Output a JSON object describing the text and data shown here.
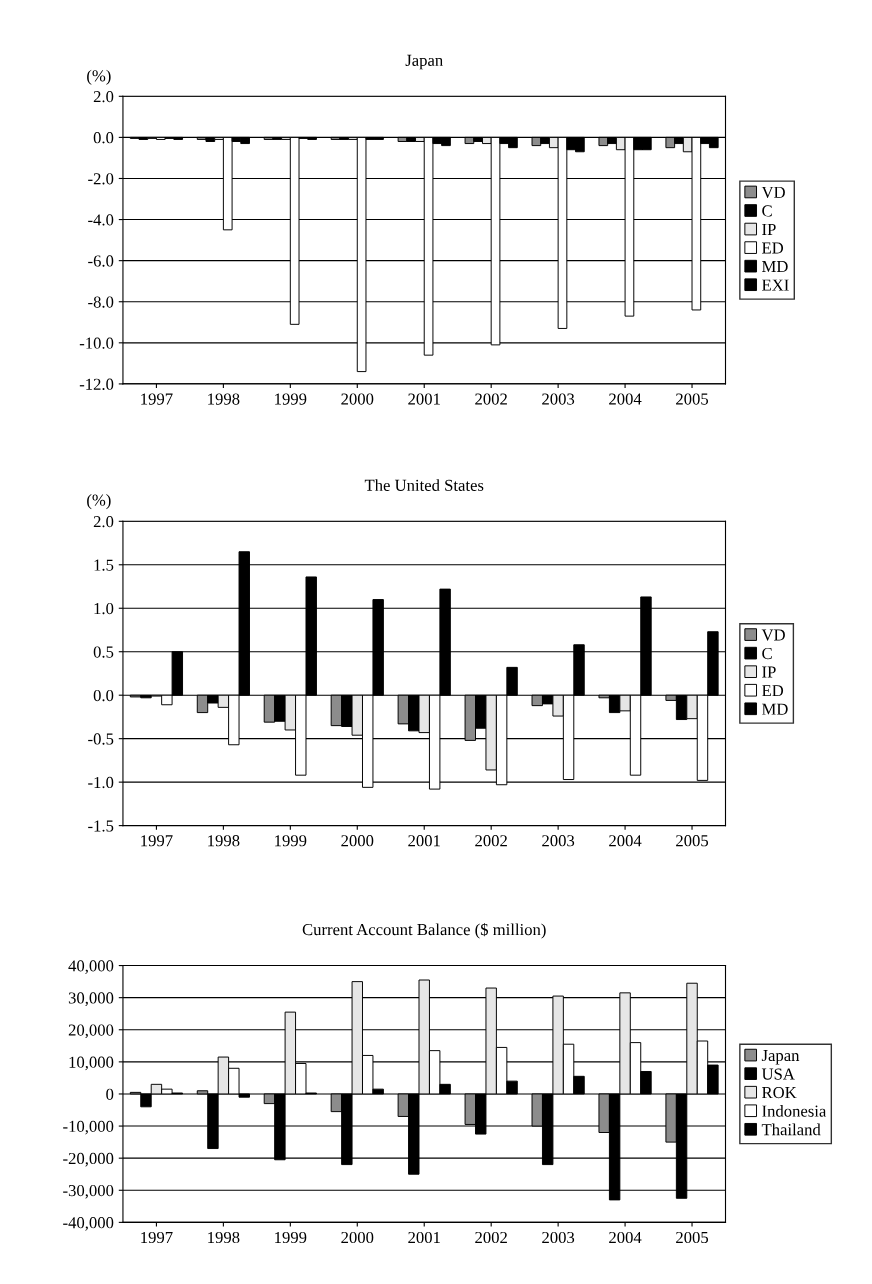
{
  "chart_data": [
    {
      "type": "bar",
      "title": "Japan",
      "ylabel": "(%)",
      "categories": [
        "1997",
        "1998",
        "1999",
        "2000",
        "2001",
        "2002",
        "2003",
        "2004",
        "2005"
      ],
      "series": [
        {
          "name": "VD",
          "color": "#8c8c8c",
          "values": [
            -0.05,
            -0.1,
            -0.1,
            -0.1,
            -0.2,
            -0.3,
            -0.4,
            -0.4,
            -0.5
          ]
        },
        {
          "name": "C",
          "color": "#000000",
          "values": [
            -0.1,
            -0.2,
            -0.1,
            -0.1,
            -0.2,
            -0.2,
            -0.3,
            -0.3,
            -0.3
          ]
        },
        {
          "name": "IP",
          "color": "#e6e6e6",
          "values": [
            -0.05,
            -0.1,
            -0.1,
            -0.1,
            -0.2,
            -0.3,
            -0.5,
            -0.6,
            -0.7
          ]
        },
        {
          "name": "ED",
          "color": "#ffffff",
          "values": [
            -0.1,
            -4.5,
            -9.1,
            -11.4,
            -10.6,
            -10.1,
            -9.3,
            -8.7,
            -8.4
          ]
        },
        {
          "name": "MD",
          "color": "#000000",
          "values": [
            -0.05,
            -0.2,
            -0.05,
            -0.1,
            -0.3,
            -0.3,
            -0.6,
            -0.6,
            -0.3
          ]
        },
        {
          "name": "EXI",
          "color": "#000000",
          "values": [
            -0.1,
            -0.3,
            -0.1,
            -0.1,
            -0.4,
            -0.5,
            -0.7,
            -0.6,
            -0.5
          ]
        }
      ],
      "ylim": [
        -12,
        2
      ],
      "yticks": [
        {
          "value": -12,
          "label": "-12.0"
        },
        {
          "value": -10,
          "label": "-10.0"
        },
        {
          "value": -8,
          "label": "-8.0"
        },
        {
          "value": -6,
          "label": "-6.0"
        },
        {
          "value": -4,
          "label": "-4.0"
        },
        {
          "value": -2,
          "label": "-2.0"
        },
        {
          "value": 0,
          "label": "0.0"
        },
        {
          "value": 2,
          "label": "2.0"
        }
      ],
      "grid": "y",
      "legend": "right"
    },
    {
      "type": "bar",
      "title": "The United States",
      "ylabel": "(%)",
      "categories": [
        "1997",
        "1998",
        "1999",
        "2000",
        "2001",
        "2002",
        "2003",
        "2004",
        "2005"
      ],
      "series": [
        {
          "name": "VD",
          "color": "#8c8c8c",
          "values": [
            -0.02,
            -0.2,
            -0.31,
            -0.35,
            -0.33,
            -0.52,
            -0.12,
            -0.03,
            -0.06
          ]
        },
        {
          "name": "C",
          "color": "#000000",
          "values": [
            -0.03,
            -0.09,
            -0.3,
            -0.36,
            -0.41,
            -0.38,
            -0.1,
            -0.2,
            -0.28
          ]
        },
        {
          "name": "IP",
          "color": "#e6e6e6",
          "values": [
            -0.01,
            -0.14,
            -0.4,
            -0.46,
            -0.43,
            -0.86,
            -0.24,
            -0.18,
            -0.27
          ]
        },
        {
          "name": "ED",
          "color": "#ffffff",
          "values": [
            -0.11,
            -0.57,
            -0.92,
            -1.06,
            -1.08,
            -1.03,
            -0.97,
            -0.92,
            -0.98
          ]
        },
        {
          "name": "MD",
          "color": "#000000",
          "values": [
            0.5,
            1.65,
            1.36,
            1.1,
            1.22,
            0.32,
            0.58,
            1.13,
            0.73
          ]
        }
      ],
      "ylim": [
        -1.5,
        2
      ],
      "yticks": [
        {
          "value": -1.5,
          "label": "-1.5"
        },
        {
          "value": -1,
          "label": "-1.0"
        },
        {
          "value": -0.5,
          "label": "-0.5"
        },
        {
          "value": 0,
          "label": "0.0"
        },
        {
          "value": 0.5,
          "label": "0.5"
        },
        {
          "value": 1,
          "label": "1.0"
        },
        {
          "value": 1.5,
          "label": "1.5"
        },
        {
          "value": 2,
          "label": "2.0"
        }
      ],
      "grid": "y",
      "legend": "right"
    },
    {
      "type": "bar",
      "title": "Current Account Balance ($ million)",
      "categories": [
        "1997",
        "1998",
        "1999",
        "2000",
        "2001",
        "2002",
        "2003",
        "2004",
        "2005"
      ],
      "series": [
        {
          "name": "Japan",
          "color": "#8c8c8c",
          "values": [
            500,
            1000,
            -3000,
            -5500,
            -7000,
            -9500,
            -10000,
            -12000,
            -15000
          ]
        },
        {
          "name": "USA",
          "color": "#000000",
          "values": [
            -4000,
            -17000,
            -20500,
            -22000,
            -25000,
            -12500,
            -22000,
            -33000,
            -32500
          ]
        },
        {
          "name": "ROK",
          "color": "#e6e6e6",
          "values": [
            3000,
            11500,
            25500,
            35000,
            35500,
            33000,
            30500,
            31500,
            34500
          ]
        },
        {
          "name": "Indonesia",
          "color": "#ffffff",
          "values": [
            1500,
            8000,
            9500,
            12000,
            13500,
            14500,
            15500,
            16000,
            16500
          ]
        },
        {
          "name": "Thailand",
          "color": "#000000",
          "values": [
            300,
            -1000,
            300,
            1500,
            3000,
            4000,
            5500,
            7000,
            9000
          ]
        }
      ],
      "ylim": [
        -40000,
        40000
      ],
      "yticks": [
        {
          "value": -40000,
          "label": "-40,000"
        },
        {
          "value": -30000,
          "label": "-30,000"
        },
        {
          "value": -20000,
          "label": "-20,000"
        },
        {
          "value": -10000,
          "label": "-10,000"
        },
        {
          "value": 0,
          "label": "0"
        },
        {
          "value": 10000,
          "label": "10,000"
        },
        {
          "value": 20000,
          "label": "20,000"
        },
        {
          "value": 30000,
          "label": "30,000"
        },
        {
          "value": 40000,
          "label": "40,000"
        }
      ],
      "grid": "y",
      "legend": "right"
    }
  ]
}
